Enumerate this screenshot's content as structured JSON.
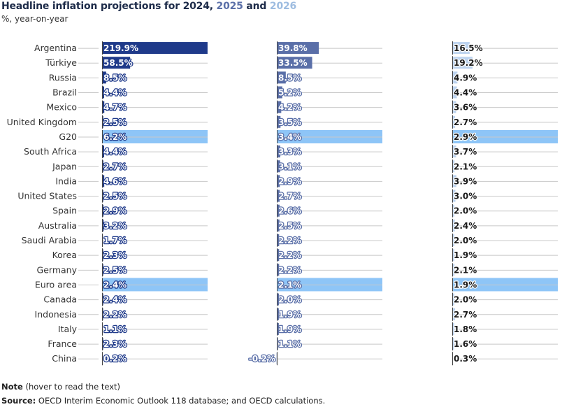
{
  "title": {
    "prefix": "Headline inflation projections for ",
    "y2024": "2024",
    "sep1": ", ",
    "y2025": "2025",
    "sep2": " and ",
    "y2026": "2026"
  },
  "subtitle": "%, year-on-year",
  "note": {
    "label": "Note",
    "text": " (hover to read the text)"
  },
  "source": {
    "label": "Source:",
    "text": " OECD Interim Economic Outlook 118 database; and OECD calculations."
  },
  "colors": {
    "y2024": "#1f3a8a",
    "y2025": "#5a6fa8",
    "y2026": "#bcd3ef",
    "highlight": "#8ec5f7",
    "grid": "#c8c8c8",
    "axis": "#444444"
  },
  "chart_data": {
    "type": "bar",
    "orientation": "horizontal",
    "categories": [
      "Argentina",
      "Türkiye",
      "Russia",
      "Brazil",
      "Mexico",
      "United Kingdom",
      "G20",
      "South Africa",
      "Japan",
      "India",
      "United States",
      "Spain",
      "Australia",
      "Saudi Arabia",
      "Korea",
      "Germany",
      "Euro area",
      "Canada",
      "Indonesia",
      "Italy",
      "France",
      "China"
    ],
    "highlighted": [
      "G20",
      "Euro area"
    ],
    "series": [
      {
        "name": "2024",
        "values": [
          219.9,
          58.5,
          8.5,
          4.4,
          4.7,
          2.5,
          6.2,
          4.4,
          2.7,
          4.6,
          2.5,
          2.9,
          3.2,
          1.7,
          2.3,
          2.5,
          2.4,
          2.4,
          2.2,
          1.1,
          2.3,
          0.2
        ],
        "labels": [
          "219.9%",
          "58.5%",
          "8.5%",
          "4.4%",
          "4.7%",
          "2.5%",
          "6.2%",
          "4.4%",
          "2.7%",
          "4.6%",
          "2.5%",
          "2.9%",
          "3.2%",
          "1.7%",
          "2.3%",
          "2.5%",
          "2.4%",
          "2.4%",
          "2.2%",
          "1.1%",
          "2.3%",
          "0.2%"
        ],
        "xlim": [
          0,
          220
        ]
      },
      {
        "name": "2025",
        "values": [
          39.8,
          33.5,
          8.5,
          5.2,
          4.2,
          3.5,
          3.4,
          3.3,
          3.1,
          2.9,
          2.7,
          2.6,
          2.5,
          2.2,
          2.2,
          2.2,
          2.1,
          2.0,
          1.9,
          1.9,
          1.1,
          -0.2
        ],
        "labels": [
          "39.8%",
          "33.5%",
          "8.5%",
          "5.2%",
          "4.2%",
          "3.5%",
          "3.4%",
          "3.3%",
          "3.1%",
          "2.9%",
          "2.7%",
          "2.6%",
          "2.5%",
          "2.2%",
          "2.2%",
          "2.2%",
          "2.1%",
          "2.0%",
          "1.9%",
          "1.9%",
          "1.1%",
          "-0.2%"
        ],
        "xlim": [
          0,
          100
        ]
      },
      {
        "name": "2026",
        "values": [
          16.5,
          19.2,
          4.9,
          4.4,
          3.6,
          2.7,
          2.9,
          3.7,
          2.1,
          3.9,
          3.0,
          2.0,
          2.4,
          2.0,
          1.9,
          2.1,
          1.9,
          2.0,
          2.7,
          1.8,
          1.6,
          0.3
        ],
        "labels": [
          "16.5%",
          "19.2%",
          "4.9%",
          "4.4%",
          "3.6%",
          "2.7%",
          "2.9%",
          "3.7%",
          "2.1%",
          "3.9%",
          "3.0%",
          "2.0%",
          "2.4%",
          "2.0%",
          "1.9%",
          "2.1%",
          "1.9%",
          "2.0%",
          "2.7%",
          "1.8%",
          "1.6%",
          "0.3%"
        ],
        "xlim": [
          0,
          100
        ]
      }
    ]
  }
}
